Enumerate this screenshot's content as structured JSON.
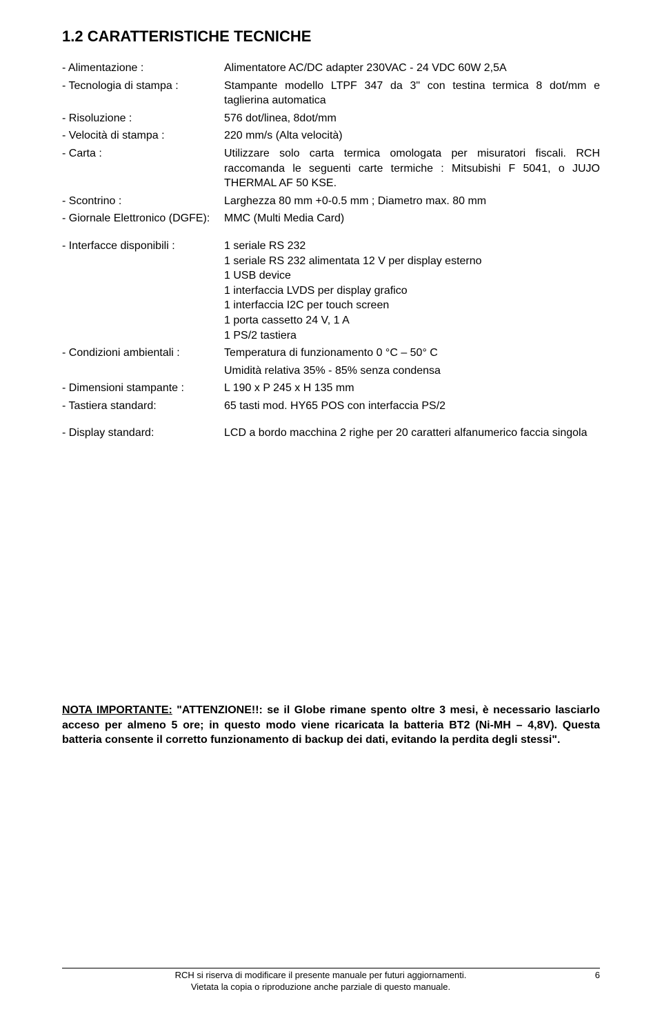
{
  "title": "1.2   CARATTERISTICHE TECNICHE",
  "specs": [
    {
      "label": "- Alimentazione :",
      "value": "Alimentatore AC/DC adapter 230VAC - 24 VDC  60W 2,5A"
    },
    {
      "label": "- Tecnologia di stampa :",
      "value": "Stampante modello LTPF 347 da 3\" con testina termica 8 dot/mm  e taglierina automatica"
    },
    {
      "label": "- Risoluzione :",
      "value": "576 dot/linea, 8dot/mm"
    },
    {
      "label": "- Velocità di stampa :",
      "value": "220 mm/s (Alta velocità)"
    },
    {
      "label": "- Carta :",
      "value": "Utilizzare solo carta termica omologata per misuratori fiscali. RCH raccomanda le seguenti carte termiche : Mitsubishi F 5041, o JUJO THERMAL AF 50 KSE."
    },
    {
      "label": "- Scontrino :",
      "value": "Larghezza 80 mm +0-0.5 mm ; Diametro max. 80 mm"
    },
    {
      "label": "- Giornale Elettronico (DGFE):",
      "value": "MMC (Multi Media Card)"
    }
  ],
  "interfaces": {
    "label": "- Interfacce disponibili :",
    "lines": [
      "1 seriale RS 232",
      "1 seriale RS 232 alimentata 12 V per display esterno",
      "1 USB device",
      "1 interfaccia LVDS per display grafico",
      "1 interfaccia I2C per touch screen",
      "1 porta cassetto 24 V, 1 A",
      "1 PS/2 tastiera"
    ]
  },
  "condizioni": {
    "label": "- Condizioni ambientali :",
    "line1": "Temperatura di funzionamento 0 °C – 50° C",
    "line2": "Umidità relativa 35% - 85% senza condensa"
  },
  "specs2": [
    {
      "label": "- Dimensioni stampante :",
      "value": "L 190 x P 245 x H 135 mm"
    },
    {
      "label": "- Tastiera standard:",
      "value": "65 tasti mod. HY65 POS con interfaccia PS/2"
    }
  ],
  "display": {
    "label": "- Display standard:",
    "value": "LCD a bordo macchina 2 righe per 20 caratteri alfanumerico faccia singola"
  },
  "note": {
    "lead": "NOTA IMPORTANTE:",
    "body": " \"ATTENZIONE!!: se il Globe rimane spento oltre 3 mesi, è necessario lasciarlo acceso per almeno 5 ore; in questo modo viene ricaricata la batteria BT2 (Ni-MH – 4,8V). Questa batteria consente il corretto funzionamento di backup dei dati, evitando la perdita degli stessi\"."
  },
  "footer": {
    "line1": "RCH si riserva di modificare il presente manuale per futuri aggiornamenti.",
    "line2": "Vietata la copia o riproduzione anche parziale di questo manuale.",
    "pagenum": "6"
  }
}
